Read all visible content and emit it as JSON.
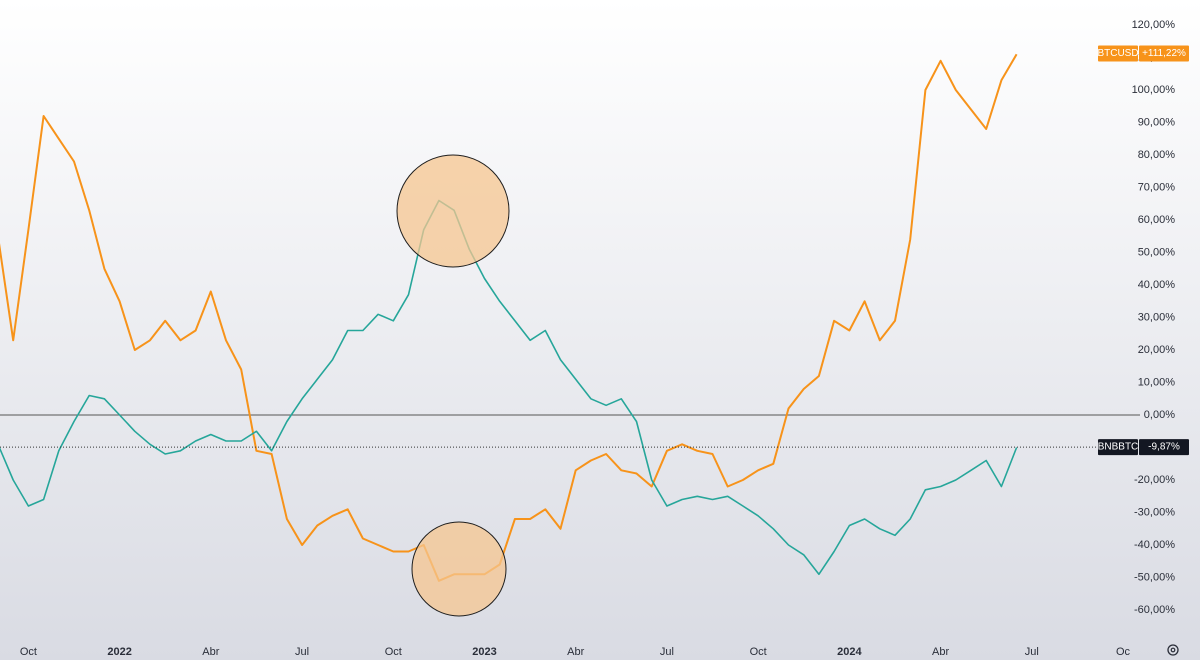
{
  "chart_data": {
    "type": "line",
    "categories": [
      null,
      null,
      "Oct",
      null,
      null,
      null,
      null,
      null,
      "2022",
      null,
      null,
      null,
      null,
      null,
      "Abr",
      null,
      null,
      null,
      null,
      null,
      "Jul",
      null,
      null,
      null,
      null,
      null,
      "Oct",
      null,
      null,
      null,
      null,
      null,
      "2023",
      null,
      null,
      null,
      null,
      null,
      "Abr",
      null,
      null,
      null,
      null,
      null,
      "Jul",
      null,
      null,
      null,
      null,
      null,
      "Oct",
      null,
      null,
      null,
      null,
      null,
      "2024",
      null,
      null,
      null,
      null,
      null,
      "Abr",
      null,
      null,
      null,
      null,
      null,
      "Jul",
      null,
      null,
      null,
      null,
      null,
      "Oc"
    ],
    "series": [
      {
        "name": "BTCUSD",
        "color": "#f7931a",
        "last_value": 111.22,
        "last_label": "+111,22%",
        "values": [
          55,
          23,
          57,
          92,
          85,
          78,
          63,
          45,
          35,
          20,
          23,
          29,
          23,
          26,
          38,
          23,
          14,
          -11,
          -12,
          -32,
          -40,
          -34,
          -31,
          -29,
          -38,
          -40,
          -42,
          -42,
          -40,
          -51,
          -49,
          -49,
          -49,
          -46,
          -32,
          -32,
          -29,
          -35,
          -17,
          -14,
          -12,
          -17,
          -18,
          -22,
          -11,
          -9,
          -11,
          -12,
          -22,
          -20,
          -17,
          -15,
          2,
          8,
          12,
          29,
          26,
          35,
          23,
          29,
          54,
          100,
          109,
          100,
          94,
          88,
          103,
          111,
          null,
          null,
          null,
          null,
          null,
          null,
          null
        ]
      },
      {
        "name": "BNBBTC",
        "color": "#26a69a",
        "last_value": -9.87,
        "last_label": "-9,87%",
        "values": [
          -9,
          -20,
          -28,
          -26,
          -11,
          -2,
          6,
          5,
          0,
          -5,
          -9,
          -12,
          -11,
          -8,
          -6,
          -8,
          -8,
          -5,
          -11,
          -2,
          5,
          11,
          17,
          26,
          26,
          31,
          29,
          37,
          57,
          66,
          63,
          51,
          42,
          35,
          29,
          23,
          26,
          17,
          11,
          5,
          3,
          5,
          -2,
          -20,
          -28,
          -26,
          -25,
          -26,
          -25,
          -28,
          -31,
          -35,
          -40,
          -43,
          -49,
          -42,
          -34,
          -32,
          -35,
          -37,
          -32,
          -23,
          -22,
          -20,
          -17,
          -14,
          -22,
          -10,
          null,
          null,
          null,
          null,
          null,
          null,
          null
        ]
      }
    ],
    "ylim": [
      -69,
      127
    ],
    "yticks": [
      {
        "value": 120,
        "label": "120,00%"
      },
      {
        "value": 110,
        "label": "110,00%"
      },
      {
        "value": 100,
        "label": "100,00%"
      },
      {
        "value": 90,
        "label": "90,00%"
      },
      {
        "value": 80,
        "label": "80,00%"
      },
      {
        "value": 70,
        "label": "70,00%"
      },
      {
        "value": 60,
        "label": "60,00%"
      },
      {
        "value": 50,
        "label": "50,00%"
      },
      {
        "value": 40,
        "label": "40,00%"
      },
      {
        "value": 30,
        "label": "30,00%"
      },
      {
        "value": 20,
        "label": "20,00%"
      },
      {
        "value": 10,
        "label": "10,00%"
      },
      {
        "value": 0,
        "label": "0,00%"
      },
      {
        "value": -20,
        "label": "-20,00%"
      },
      {
        "value": -30,
        "label": "-30,00%"
      },
      {
        "value": -40,
        "label": "-40,00%"
      },
      {
        "value": -50,
        "label": "-50,00%"
      },
      {
        "value": -60,
        "label": "-60,00%"
      }
    ],
    "grid": false
  }
}
